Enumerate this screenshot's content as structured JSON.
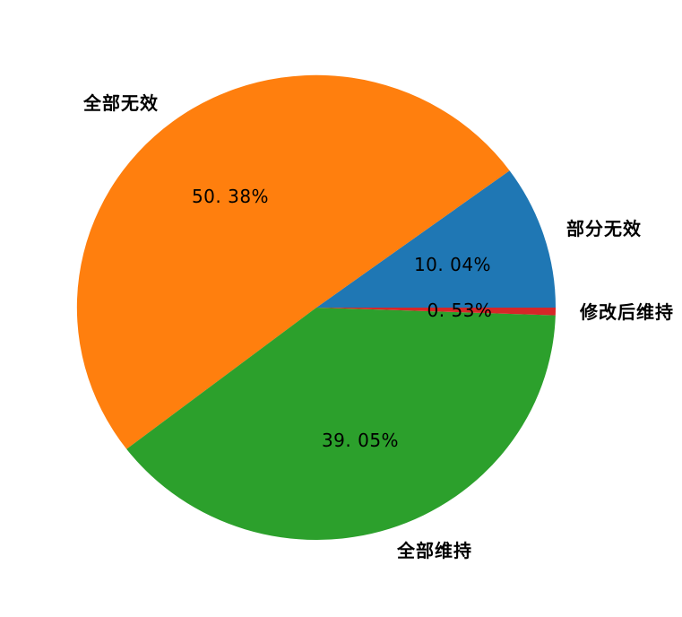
{
  "page": {
    "background_color": "#ffffff"
  },
  "chart_data": {
    "type": "pie",
    "title": "",
    "legend_position": "none",
    "direction": "counterclockwise",
    "start_angle_deg": 0,
    "label_color": "#000000",
    "slices": [
      {
        "label": "部分无效",
        "value": 10.04,
        "pct_label": "10. 04%",
        "color": "#1f77b4"
      },
      {
        "label": "全部无效",
        "value": 50.38,
        "pct_label": "50. 38%",
        "color": "#ff7f0e"
      },
      {
        "label": "全部维持",
        "value": 39.05,
        "pct_label": "39. 05%",
        "color": "#2ca02c"
      },
      {
        "label": "修改后维持",
        "value": 0.53,
        "pct_label": "0. 53%",
        "color": "#d62728"
      }
    ]
  }
}
